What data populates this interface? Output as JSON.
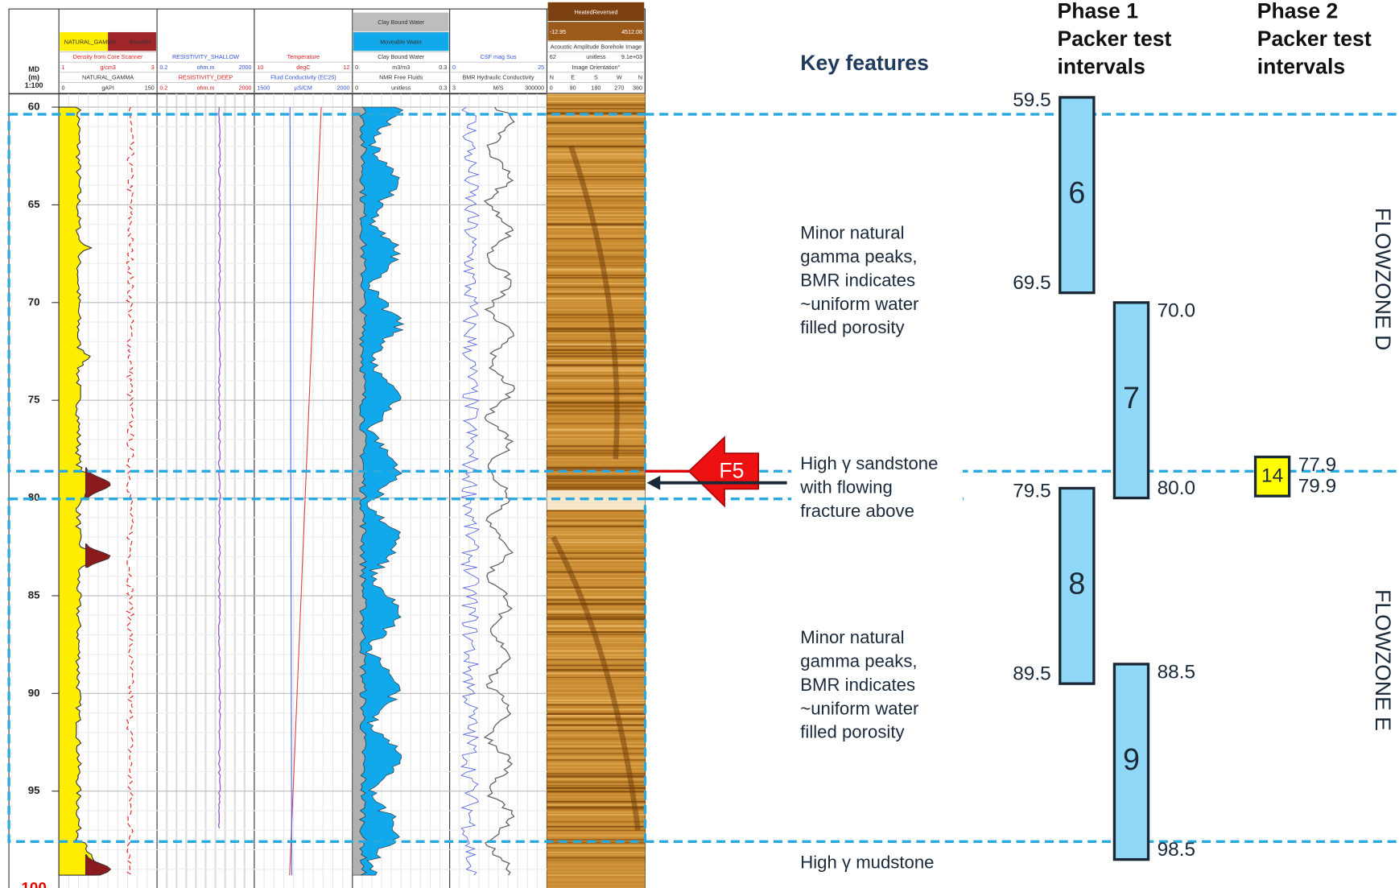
{
  "depth_axis": {
    "header": [
      "MD",
      "(m)",
      "1:100"
    ],
    "ticks": [
      60,
      65,
      70,
      75,
      80,
      85,
      90,
      95,
      100
    ]
  },
  "tracks": [
    {
      "rows": [
        [
          "NATURAL_GAMMA",
          "Baseline"
        ],
        [
          "Density from Core Scanner"
        ],
        [
          "1",
          "g/cm3",
          "3"
        ],
        [
          "NATURAL_GAMMA"
        ],
        [
          "0",
          "gAPI",
          "150"
        ]
      ]
    },
    {
      "rows": [
        [
          "RESISTIVITY_SHALLOW"
        ],
        [
          "0.2",
          "ohm.m",
          "2000"
        ],
        [
          "RESISTIVITY_DEEP"
        ],
        [
          "0.2",
          "ohm.m",
          "2000"
        ]
      ]
    },
    {
      "rows": [
        [
          "Temperature"
        ],
        [
          "10",
          "degC",
          "12"
        ],
        [
          "Fluid Conductivity (EC25)"
        ],
        [
          "1500",
          "µS/CM",
          "2000"
        ]
      ]
    },
    {
      "rows": [
        [
          "Clay Bound Water"
        ],
        [
          "Moveable Water"
        ],
        [
          "Clay Bound Water"
        ],
        [
          "0",
          "m3/m3",
          "0.3"
        ],
        [
          "NMR Free Fluids"
        ],
        [
          "0",
          "unitless",
          "0.3"
        ]
      ]
    },
    {
      "rows": [
        [
          "CSF mag Sus"
        ],
        [
          "0",
          "25"
        ],
        [
          "BMR Hydraulic Conductivity"
        ],
        [
          "3",
          "M/S",
          "300000"
        ]
      ]
    },
    {
      "rows": [
        [
          "HeatedReversed"
        ],
        [
          "-12.95",
          "4512.08"
        ],
        [
          "Acoustic Amplitude Borehole Image"
        ],
        [
          "62",
          "unitless",
          "9.1e+03"
        ],
        [
          "Image Orientation°"
        ],
        [
          "N",
          "E",
          "S",
          "W",
          "N"
        ],
        [
          "0",
          "90",
          "180",
          "270",
          "360"
        ]
      ]
    }
  ],
  "key_features": {
    "title": "Key features",
    "notes": [
      {
        "depth": 66.5,
        "lines": [
          "Minor natural",
          "gamma peaks,",
          "BMR indicates",
          "~uniform water",
          "filled porosity"
        ]
      },
      {
        "depth": 78.3,
        "lines": [
          "High γ sandstone",
          "with flowing",
          "fracture above"
        ]
      },
      {
        "depth": 87.2,
        "lines": [
          "Minor natural",
          "gamma peaks,",
          "BMR indicates",
          "~uniform water",
          "filled porosity"
        ]
      },
      {
        "depth": 98.7,
        "lines": [
          "High γ mudstone"
        ]
      }
    ]
  },
  "fracture": {
    "label": "F5"
  },
  "phase1": {
    "title": [
      "Phase 1",
      "Packer test",
      "intervals"
    ],
    "intervals": [
      {
        "name": "6",
        "top": {
          "value": 59.5,
          "label": "59.5"
        },
        "bottom": {
          "value": 69.5,
          "label": "69.5"
        }
      },
      {
        "name": "7",
        "top": {
          "value": 70.0,
          "label": "70.0"
        },
        "bottom": {
          "value": 80.0,
          "label": "80.0"
        }
      },
      {
        "name": "8",
        "top": {
          "value": 79.5,
          "label": "79.5"
        },
        "bottom": {
          "value": 89.5,
          "label": "89.5"
        }
      },
      {
        "name": "9",
        "top": {
          "value": 88.5,
          "label": "88.5"
        },
        "bottom": {
          "value": 98.5,
          "label": "98.5"
        }
      }
    ]
  },
  "phase2": {
    "title": [
      "Phase 2",
      "Packer test",
      "intervals"
    ],
    "intervals": [
      {
        "name": "14",
        "top": {
          "value": 77.9,
          "label": "77.9"
        },
        "bottom": {
          "value": 79.9,
          "label": "79.9"
        }
      }
    ]
  },
  "flowzones": [
    "FLOWZONE D",
    "FLOWZONE E"
  ]
}
